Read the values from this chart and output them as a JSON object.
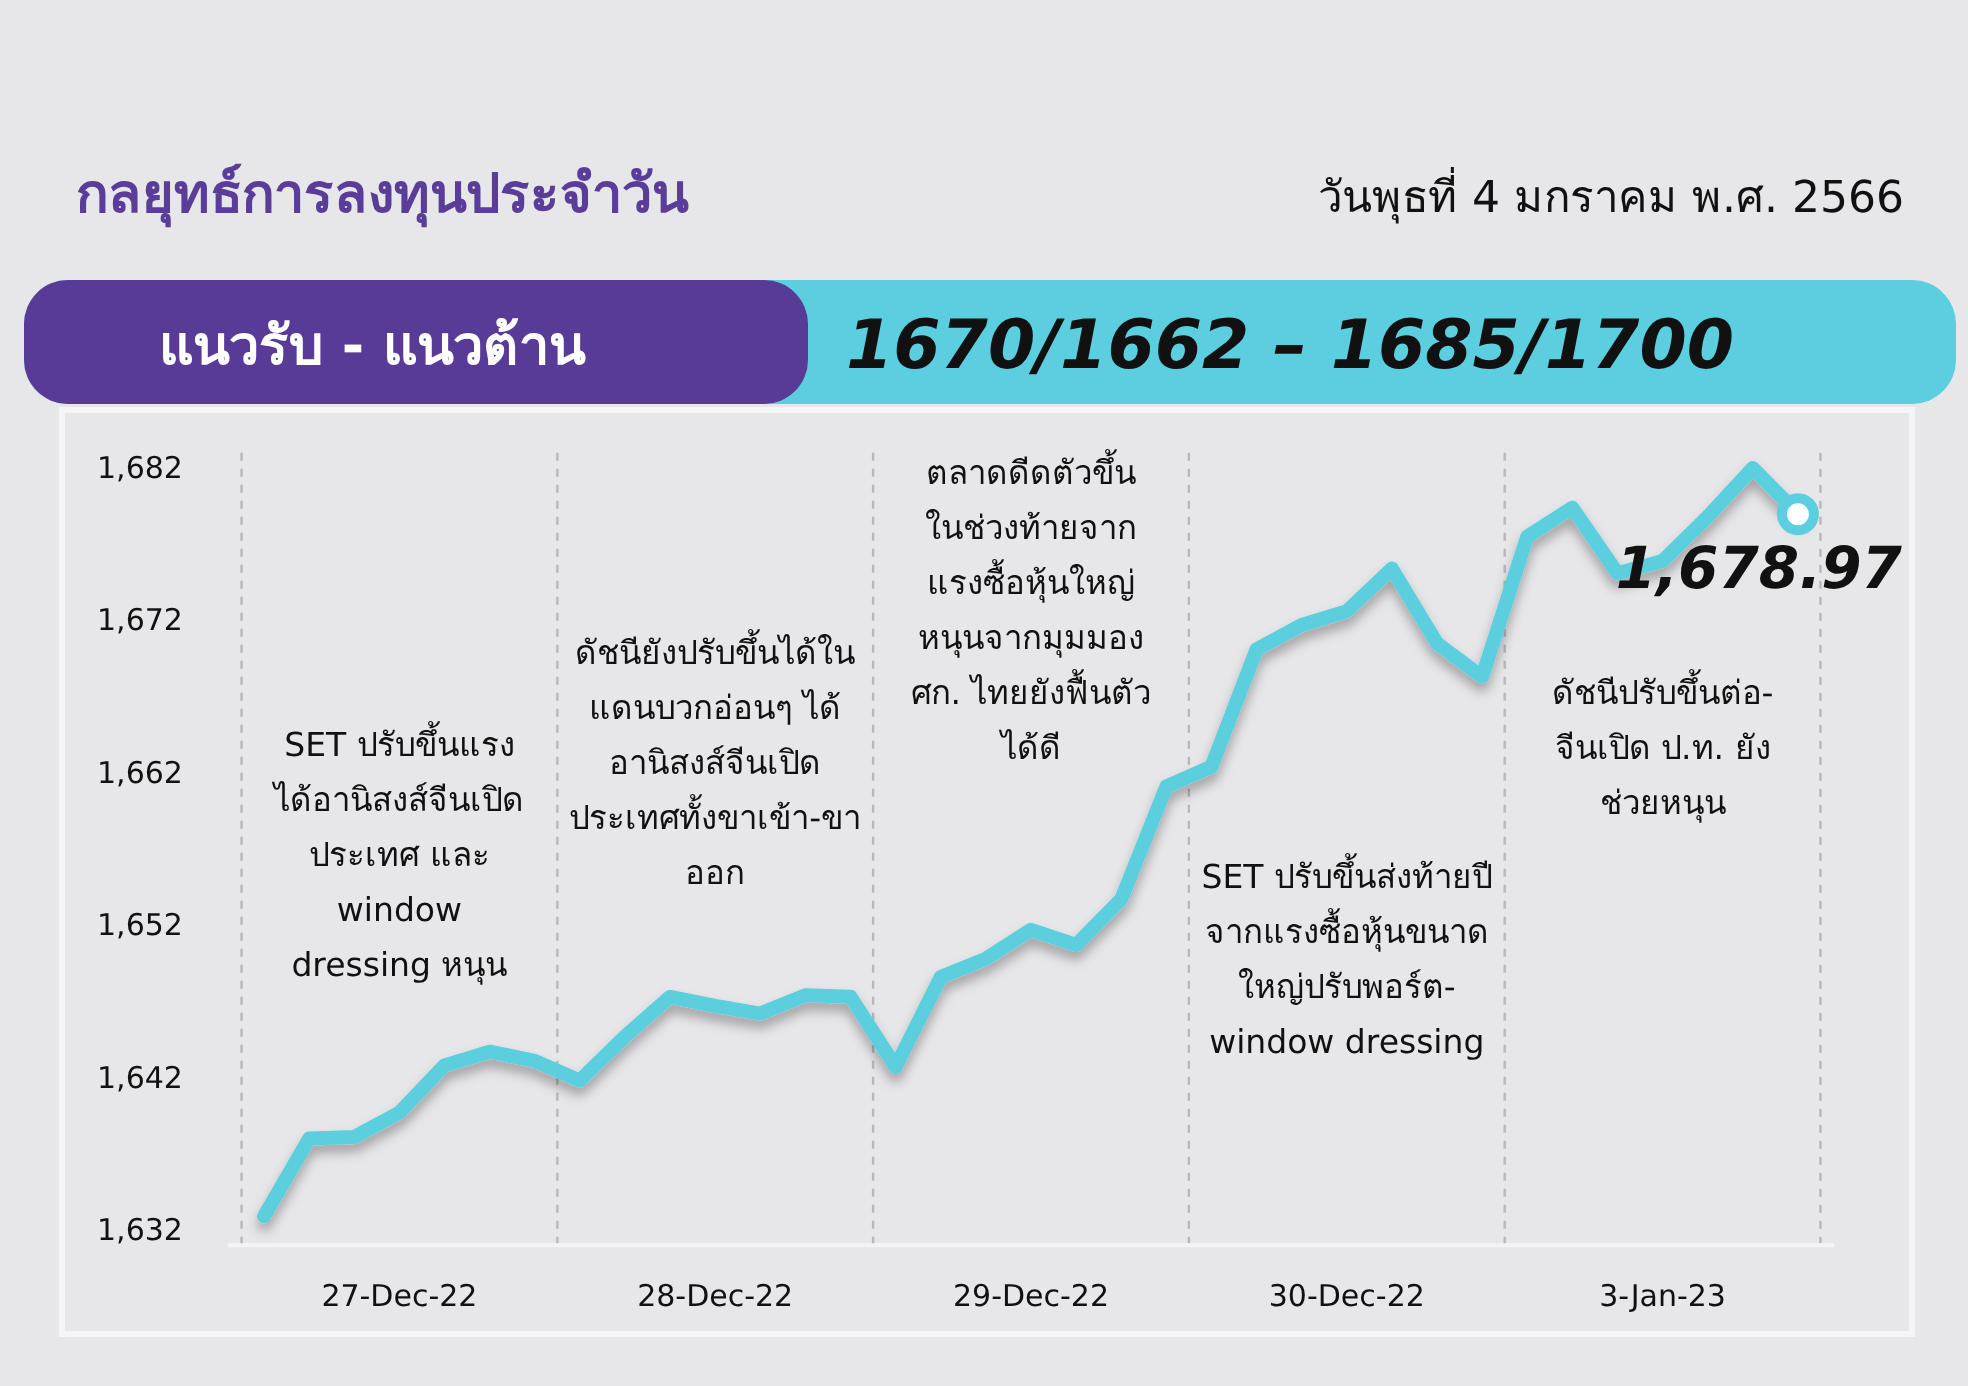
{
  "chart_data": {
    "type": "line",
    "title": "กลยุทธ์การลงทุนประจำวัน",
    "subtitle": "วันพุธที่ 4 มกราคม พ.ศ. 2566",
    "annotations": [
      "แนวรับ - แนวต้าน",
      "1670/1662 – 1685/1700",
      "SET ปรับขึ้นแรง\nได้อานิสงส์จีนเปิด\nประเทศ และ\nwindow\ndressing หนุน",
      "ดัชนียังปรับขึ้นได้ใน\nแดนบวกอ่อนๆ ได้\nอานิสงส์จีนเปิด\nประเทศทั้งขาเข้า-ขา\nออก",
      "ตลาดดีดตัวขึ้น\nในช่วงท้ายจาก\nแรงซื้อหุ้นใหญ่\nหนุนจากมุมมอง\nศก. ไทยยังฟื้นตัว\nได้ดี",
      "SET ปรับขึ้นส่งท้ายปี\nจากแรงซื้อหุ้นขนาด\nใหญ่ปรับพอร์ต-\nwindow dressing",
      "ดัชนีปรับขึ้นต่อ-\nจีนเปิด ป.ท. ยัง\nช่วยหนุน"
    ],
    "categories": [
      null,
      null,
      null,
      "27-Dec-22",
      null,
      null,
      null,
      null,
      null,
      null,
      "28-Dec-22",
      null,
      null,
      null,
      null,
      null,
      null,
      "29-Dec-22",
      null,
      null,
      null,
      null,
      null,
      null,
      "30-Dec-22",
      null,
      null,
      null,
      null,
      null,
      null,
      "3-Jan-23",
      null,
      null,
      null
    ],
    "ylim": [
      1631,
      1683
    ],
    "yticks": [
      {
        "value": 1632,
        "label": "1,632"
      },
      {
        "value": 1642,
        "label": "1,642"
      },
      {
        "value": 1652,
        "label": "1,652"
      },
      {
        "value": 1662,
        "label": "1,662"
      },
      {
        "value": 1672,
        "label": "1,672"
      },
      {
        "value": 1682,
        "label": "1,682"
      }
    ],
    "grid": false,
    "series": [
      {
        "color": "#5bcfdf",
        "values": [
          1632.9,
          1638.0,
          1638.1,
          1639.7,
          1642.8,
          1643.7,
          1643.1,
          1641.8,
          1644.7,
          1647.3,
          1646.7,
          1646.2,
          1647.4,
          1647.3,
          1642.7,
          1648.6,
          1649.8,
          1651.7,
          1650.7,
          1653.7,
          1661.1,
          1662.4,
          1670.1,
          1671.7,
          1672.6,
          1675.4,
          1670.5,
          1668.3,
          1677.5,
          1679.4,
          1675.1,
          1675.9,
          1678.8,
          1682.0,
          1679.0
        ]
      },
      {
        "type": "scatter",
        "color": "#5bcfdf",
        "marker": "circle",
        "values": [
          null,
          null,
          null,
          null,
          null,
          null,
          null,
          null,
          null,
          null,
          null,
          null,
          null,
          null,
          null,
          null,
          null,
          null,
          null,
          null,
          null,
          null,
          null,
          null,
          null,
          null,
          null,
          null,
          null,
          null,
          null,
          null,
          null,
          null,
          1678.97
        ],
        "value_labels": [
          null,
          null,
          null,
          null,
          null,
          null,
          null,
          null,
          null,
          null,
          null,
          null,
          null,
          null,
          null,
          null,
          null,
          null,
          null,
          null,
          null,
          null,
          null,
          null,
          null,
          null,
          null,
          null,
          null,
          null,
          null,
          null,
          null,
          null,
          "1,678.97"
        ]
      }
    ]
  }
}
